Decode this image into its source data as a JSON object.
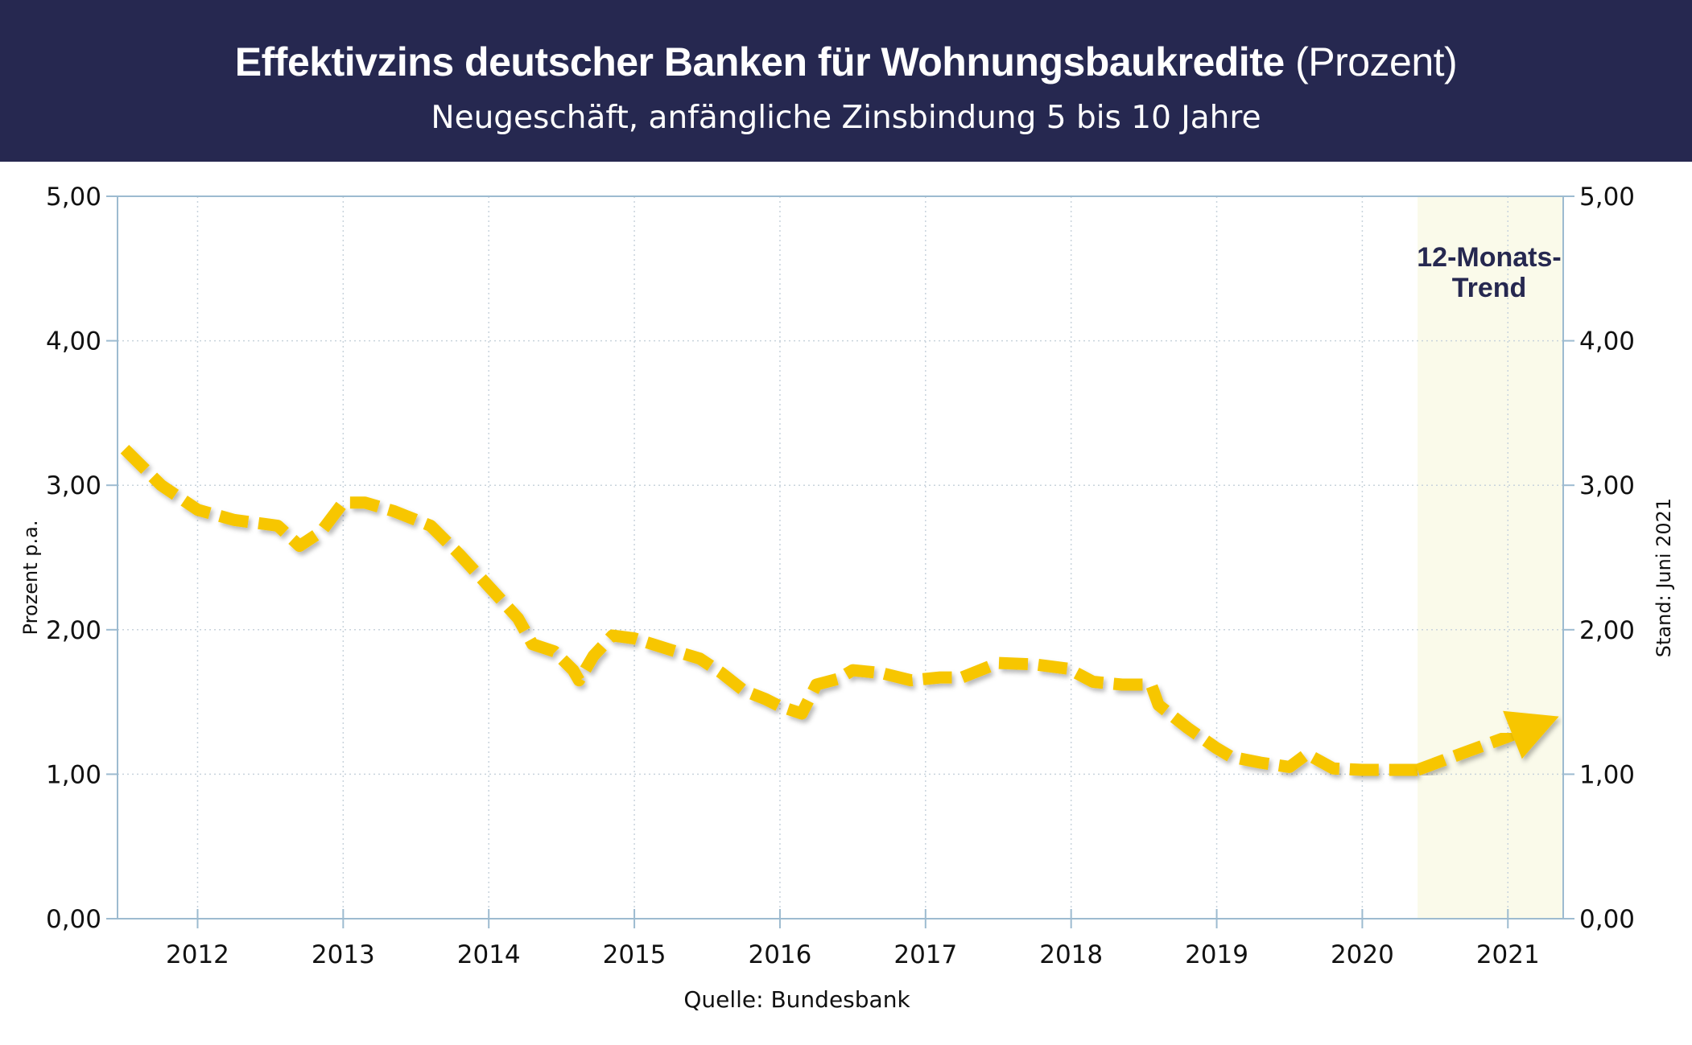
{
  "header": {
    "title_main": "Effektivzins deutscher Banken für Wohnungsbaukredite",
    "title_unit": "(Prozent)",
    "subtitle": "Neugeschäft, anfängliche Zinsbindung 5 bis 10 Jahre"
  },
  "colors": {
    "header_bg": "#262850",
    "line": "#F7C600",
    "trend_band": "#FAFAEA",
    "grid": "#C8D3DC",
    "axis": "#9DBBD0"
  },
  "chart_data": {
    "type": "line",
    "ylabel": "Prozent p.a.",
    "ylabel_right": "Stand: Juni 2021",
    "ylim": [
      0,
      5
    ],
    "xlim": [
      2011.45,
      2021.38
    ],
    "yticks": [
      "0,00",
      "1,00",
      "2,00",
      "3,00",
      "4,00",
      "5,00"
    ],
    "xticks": [
      "2012",
      "2013",
      "2014",
      "2015",
      "2016",
      "2017",
      "2018",
      "2019",
      "2020",
      "2021"
    ],
    "grid": true,
    "source": "Quelle: Bundesbank",
    "trend": {
      "label_line1": "12-Monats-",
      "label_line2": "Trend",
      "x_start": 2020.38,
      "x_end": 2021.38,
      "points": [
        [
          2020.38,
          1.03
        ],
        [
          2020.7,
          1.15
        ],
        [
          2021.0,
          1.26
        ],
        [
          2021.35,
          1.4
        ]
      ]
    },
    "series": [
      {
        "values": [
          [
            2011.5,
            3.25
          ],
          [
            2011.75,
            3.0
          ],
          [
            2012.0,
            2.83
          ],
          [
            2012.25,
            2.76
          ],
          [
            2012.55,
            2.72
          ],
          [
            2012.7,
            2.58
          ],
          [
            2012.85,
            2.68
          ],
          [
            2013.0,
            2.88
          ],
          [
            2013.15,
            2.88
          ],
          [
            2013.35,
            2.82
          ],
          [
            2013.6,
            2.72
          ],
          [
            2013.8,
            2.52
          ],
          [
            2014.0,
            2.3
          ],
          [
            2014.2,
            2.08
          ],
          [
            2014.3,
            1.9
          ],
          [
            2014.45,
            1.85
          ],
          [
            2014.58,
            1.72
          ],
          [
            2014.62,
            1.65
          ],
          [
            2014.72,
            1.82
          ],
          [
            2014.85,
            1.96
          ],
          [
            2015.0,
            1.94
          ],
          [
            2015.25,
            1.86
          ],
          [
            2015.45,
            1.8
          ],
          [
            2015.6,
            1.7
          ],
          [
            2015.75,
            1.58
          ],
          [
            2015.9,
            1.52
          ],
          [
            2016.0,
            1.47
          ],
          [
            2016.15,
            1.42
          ],
          [
            2016.25,
            1.62
          ],
          [
            2016.4,
            1.66
          ],
          [
            2016.5,
            1.72
          ],
          [
            2016.7,
            1.7
          ],
          [
            2016.9,
            1.65
          ],
          [
            2017.1,
            1.67
          ],
          [
            2017.25,
            1.67
          ],
          [
            2017.5,
            1.77
          ],
          [
            2017.75,
            1.76
          ],
          [
            2017.98,
            1.73
          ],
          [
            2018.15,
            1.64
          ],
          [
            2018.35,
            1.62
          ],
          [
            2018.55,
            1.62
          ],
          [
            2018.6,
            1.48
          ],
          [
            2018.8,
            1.32
          ],
          [
            2019.0,
            1.18
          ],
          [
            2019.1,
            1.12
          ],
          [
            2019.3,
            1.08
          ],
          [
            2019.5,
            1.05
          ],
          [
            2019.62,
            1.14
          ],
          [
            2019.8,
            1.04
          ],
          [
            2020.0,
            1.03
          ],
          [
            2020.2,
            1.03
          ],
          [
            2020.38,
            1.03
          ]
        ]
      }
    ]
  }
}
